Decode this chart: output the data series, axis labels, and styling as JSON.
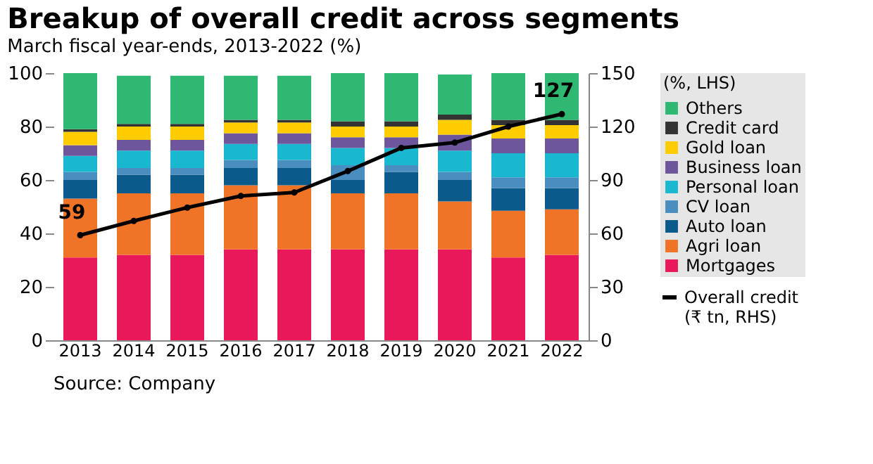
{
  "chart_data": {
    "type": "bar",
    "title": "Breakup of overall credit across segments",
    "subtitle": "March fiscal year-ends, 2013-2022 (%)",
    "legend_title": "(%, LHS)",
    "annotations": [
      "Source: Company"
    ],
    "categories": [
      "2013",
      "2014",
      "2015",
      "2016",
      "2017",
      "2018",
      "2019",
      "2020",
      "2021",
      "2022"
    ],
    "stacked": true,
    "ylim": [
      0,
      100
    ],
    "yticks": [
      0,
      20,
      40,
      60,
      80,
      100
    ],
    "y2lim": [
      0,
      150
    ],
    "y2ticks": [
      0,
      30,
      60,
      90,
      120,
      150
    ],
    "grid": false,
    "legend": "right",
    "series": [
      {
        "name": "Mortgages",
        "color": "#e8185a",
        "values": [
          31,
          32,
          32,
          34,
          34,
          34,
          34,
          34,
          31,
          32
        ]
      },
      {
        "name": "Agri loan",
        "color": "#f07428",
        "values": [
          22,
          23,
          23,
          24,
          24,
          21,
          21,
          18,
          17.5,
          17
        ]
      },
      {
        "name": "Auto loan",
        "color": "#0a5a8c",
        "values": [
          7,
          7,
          7,
          6.5,
          6.5,
          5,
          8,
          8,
          8.5,
          8
        ]
      },
      {
        "name": "CV loan",
        "color": "#4a8ec0",
        "values": [
          3,
          2.5,
          2.5,
          3,
          3,
          5.5,
          2.5,
          3,
          4,
          4
        ]
      },
      {
        "name": "Personal loan",
        "color": "#1ab8d0",
        "values": [
          6,
          6.5,
          6.5,
          6,
          6,
          6.5,
          6.5,
          8,
          9,
          9
        ]
      },
      {
        "name": "Business loan",
        "color": "#6e569c",
        "values": [
          4,
          4,
          4,
          4,
          4,
          4,
          4,
          6,
          5.5,
          5.5
        ]
      },
      {
        "name": "Gold loan",
        "color": "#ffcc00",
        "values": [
          5,
          5,
          5,
          4,
          4,
          4,
          4,
          5.5,
          5,
          5
        ]
      },
      {
        "name": "Credit card",
        "color": "#333333",
        "values": [
          1,
          1,
          1,
          1,
          1,
          2,
          2,
          2,
          2,
          2
        ]
      },
      {
        "name": "Others",
        "color": "#2eb872",
        "values": [
          21,
          18,
          18,
          16.5,
          16.5,
          18,
          18,
          15,
          17.5,
          17.5
        ]
      },
      {
        "name": "Overall credit (₹ tn, RHS)",
        "color": "#000000",
        "type": "line",
        "axis": "y2",
        "marker": "circle",
        "values": [
          59,
          67,
          74.5,
          81,
          83,
          95,
          108,
          111,
          120,
          127
        ],
        "value_labels": [
          "59",
          null,
          null,
          null,
          null,
          null,
          null,
          null,
          null,
          "127"
        ]
      }
    ]
  }
}
